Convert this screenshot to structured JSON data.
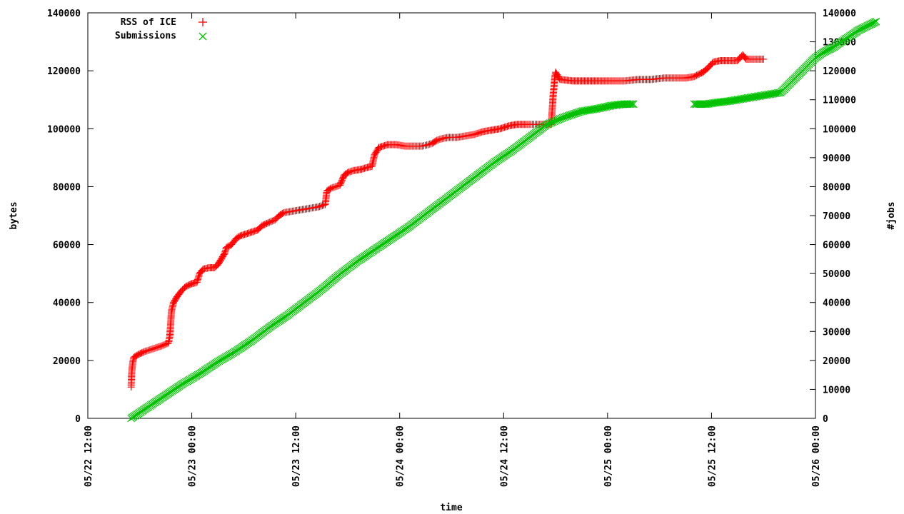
{
  "chart_data": {
    "type": "scatter",
    "title": "",
    "xlabel": "time",
    "ylabel": "bytes",
    "y2label": "#jobs",
    "x_ticks": [
      "05/22 12:00",
      "05/23 00:00",
      "05/23 12:00",
      "05/24 00:00",
      "05/24 12:00",
      "05/25 00:00",
      "05/25 12:00",
      "05/26 00:00"
    ],
    "xlim_hours": [
      0,
      84
    ],
    "ylim": [
      0,
      140000
    ],
    "y2lim": [
      0,
      140000
    ],
    "y_ticks": [
      0,
      20000,
      40000,
      60000,
      80000,
      100000,
      120000,
      140000
    ],
    "y2_ticks": [
      0,
      10000,
      20000,
      30000,
      40000,
      50000,
      60000,
      70000,
      80000,
      90000,
      100000,
      110000,
      120000,
      130000,
      140000
    ],
    "grid": false,
    "legend_position": "top-left",
    "series": [
      {
        "name": "RSS of ICE",
        "marker": "plus",
        "color": "#ff0000",
        "axis": "left",
        "points": [
          [
            5.0,
            10800
          ],
          [
            5.05,
            15000
          ],
          [
            5.1,
            17000
          ],
          [
            5.2,
            19500
          ],
          [
            5.3,
            21000
          ],
          [
            5.8,
            22000
          ],
          [
            6.5,
            23000
          ],
          [
            7.5,
            24000
          ],
          [
            8.5,
            25000
          ],
          [
            9.3,
            26000
          ],
          [
            9.45,
            28000
          ],
          [
            9.55,
            32000
          ],
          [
            9.65,
            37000
          ],
          [
            9.9,
            40000
          ],
          [
            10.3,
            42000
          ],
          [
            10.8,
            44000
          ],
          [
            11.3,
            45500
          ],
          [
            12.0,
            46500
          ],
          [
            12.6,
            47000
          ],
          [
            12.9,
            50000
          ],
          [
            13.3,
            51500
          ],
          [
            14.0,
            52000
          ],
          [
            14.6,
            52000
          ],
          [
            15.0,
            53000
          ],
          [
            15.4,
            55000
          ],
          [
            15.8,
            57000
          ],
          [
            16.0,
            59000
          ],
          [
            16.6,
            60000
          ],
          [
            17.1,
            62000
          ],
          [
            17.6,
            63000
          ],
          [
            18.6,
            64000
          ],
          [
            19.6,
            65000
          ],
          [
            20.1,
            66500
          ],
          [
            20.8,
            67500
          ],
          [
            21.6,
            68500
          ],
          [
            22.1,
            70000
          ],
          [
            22.6,
            71000
          ],
          [
            23.6,
            71500
          ],
          [
            24.6,
            72000
          ],
          [
            25.6,
            72500
          ],
          [
            26.6,
            73000
          ],
          [
            27.4,
            73800
          ],
          [
            27.6,
            78500
          ],
          [
            28.1,
            79500
          ],
          [
            28.6,
            80000
          ],
          [
            29.1,
            80500
          ],
          [
            29.6,
            84000
          ],
          [
            30.1,
            85000
          ],
          [
            30.6,
            85500
          ],
          [
            31.6,
            86000
          ],
          [
            32.1,
            86500
          ],
          [
            32.8,
            87000
          ],
          [
            33.1,
            91000
          ],
          [
            33.6,
            93500
          ],
          [
            34.6,
            94500
          ],
          [
            35.6,
            94500
          ],
          [
            36.6,
            94000
          ],
          [
            37.6,
            94000
          ],
          [
            38.6,
            94000
          ],
          [
            39.3,
            94500
          ],
          [
            39.8,
            95000
          ],
          [
            40.3,
            96000
          ],
          [
            40.8,
            96500
          ],
          [
            41.6,
            97000
          ],
          [
            42.6,
            97000
          ],
          [
            43.6,
            97500
          ],
          [
            44.6,
            98000
          ],
          [
            45.6,
            99000
          ],
          [
            46.6,
            99500
          ],
          [
            47.6,
            100000
          ],
          [
            48.6,
            101000
          ],
          [
            49.6,
            101500
          ],
          [
            50.6,
            101500
          ],
          [
            52.0,
            101500
          ],
          [
            53.0,
            101500
          ],
          [
            53.5,
            101500
          ],
          [
            53.6,
            106000
          ],
          [
            53.7,
            111000
          ],
          [
            53.8,
            114000
          ],
          [
            53.9,
            117500
          ],
          [
            54.0,
            119500
          ],
          [
            54.5,
            117000
          ],
          [
            56.0,
            116500
          ],
          [
            58.0,
            116500
          ],
          [
            60.0,
            116500
          ],
          [
            62.0,
            116500
          ],
          [
            63.5,
            117000
          ],
          [
            65.0,
            117000
          ],
          [
            66.5,
            117500
          ],
          [
            68.0,
            117500
          ],
          [
            69.0,
            117500
          ],
          [
            70.0,
            118000
          ],
          [
            71.0,
            119500
          ],
          [
            71.6,
            121000
          ],
          [
            72.2,
            123000
          ],
          [
            73.0,
            123500
          ],
          [
            74.0,
            123500
          ],
          [
            75.0,
            123500
          ],
          [
            75.6,
            125500
          ],
          [
            76.0,
            124000
          ],
          [
            77.0,
            124000
          ],
          [
            78.0,
            124000
          ]
        ]
      },
      {
        "name": "Submissions",
        "marker": "cross",
        "color": "#00c000",
        "axis": "right",
        "points": [
          [
            5.0,
            0
          ],
          [
            7.0,
            4000
          ],
          [
            9.0,
            8000
          ],
          [
            11.0,
            12000
          ],
          [
            13.0,
            15500
          ],
          [
            15.0,
            19500
          ],
          [
            17.0,
            23000
          ],
          [
            19.0,
            27000
          ],
          [
            21.0,
            31500
          ],
          [
            23.0,
            35500
          ],
          [
            25.0,
            40000
          ],
          [
            27.0,
            44500
          ],
          [
            29.0,
            49500
          ],
          [
            31.0,
            54000
          ],
          [
            33.0,
            58000
          ],
          [
            35.0,
            62000
          ],
          [
            37.0,
            66000
          ],
          [
            39.0,
            70500
          ],
          [
            41.0,
            75000
          ],
          [
            43.0,
            79500
          ],
          [
            45.0,
            84000
          ],
          [
            47.0,
            88500
          ],
          [
            49.0,
            92500
          ],
          [
            51.0,
            97000
          ],
          [
            53.0,
            101500
          ],
          [
            55.0,
            104000
          ],
          [
            57.0,
            106000
          ],
          [
            59.0,
            107000
          ],
          [
            60.5,
            108000
          ],
          [
            62.0,
            108500
          ],
          [
            63.0,
            108500
          ],
          [
            70.0,
            108500
          ],
          [
            71.5,
            108500
          ],
          [
            72.5,
            109000
          ],
          [
            74.0,
            109500
          ],
          [
            76.0,
            110500
          ],
          [
            78.0,
            111500
          ],
          [
            79.0,
            112000
          ],
          [
            80.0,
            112500
          ],
          [
            81.0,
            115500
          ],
          [
            82.0,
            118500
          ],
          [
            83.0,
            121500
          ],
          [
            84.0,
            124500
          ],
          [
            85.0,
            126500
          ],
          [
            86.0,
            128000
          ],
          [
            87.0,
            130000
          ],
          [
            88.0,
            132000
          ],
          [
            89.0,
            134000
          ],
          [
            90.0,
            135500
          ],
          [
            91.0,
            137000
          ]
        ]
      }
    ]
  }
}
